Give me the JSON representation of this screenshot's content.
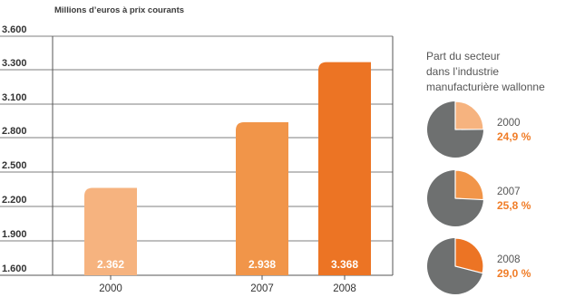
{
  "chart_data": [
    {
      "type": "bar",
      "title": "Millions d’euros à prix courants",
      "categories": [
        "2000",
        "2007",
        "2008"
      ],
      "values": [
        2362,
        2938,
        3368
      ],
      "value_labels": [
        "2.362",
        "2.938",
        "3.368"
      ],
      "ylim": [
        1600,
        3600
      ],
      "yticks": [
        1600,
        1900,
        2200,
        2500,
        2800,
        3100,
        3300,
        3600
      ],
      "ytick_labels": [
        "1.600",
        "1.900",
        "2.200",
        "2.500",
        "2.800",
        "3.100",
        "3.300",
        "3.600"
      ],
      "bar_colors": [
        "#f6b37f",
        "#f19549",
        "#ec7424"
      ],
      "grid": "horizontal",
      "note": "y-axis is not linear (ticks 3.100 and 3.300 unevenly spaced)"
    },
    {
      "type": "pie",
      "title": "Part du secteur dans l’industrie manufacturière wallonne",
      "title_lines": [
        "Part du secteur",
        "dans l’industrie",
        "manufacturière wallonne"
      ],
      "pies": [
        {
          "label": "2000",
          "value": 24.9,
          "value_label": "24,9 %",
          "slice_color": "#f6b37f"
        },
        {
          "label": "2007",
          "value": 25.8,
          "value_label": "25,8 %",
          "slice_color": "#f19549"
        },
        {
          "label": "2008",
          "value": 29.0,
          "value_label": "29,0 %",
          "slice_color": "#ec7424"
        }
      ],
      "rest_color": "#6e7070"
    }
  ]
}
